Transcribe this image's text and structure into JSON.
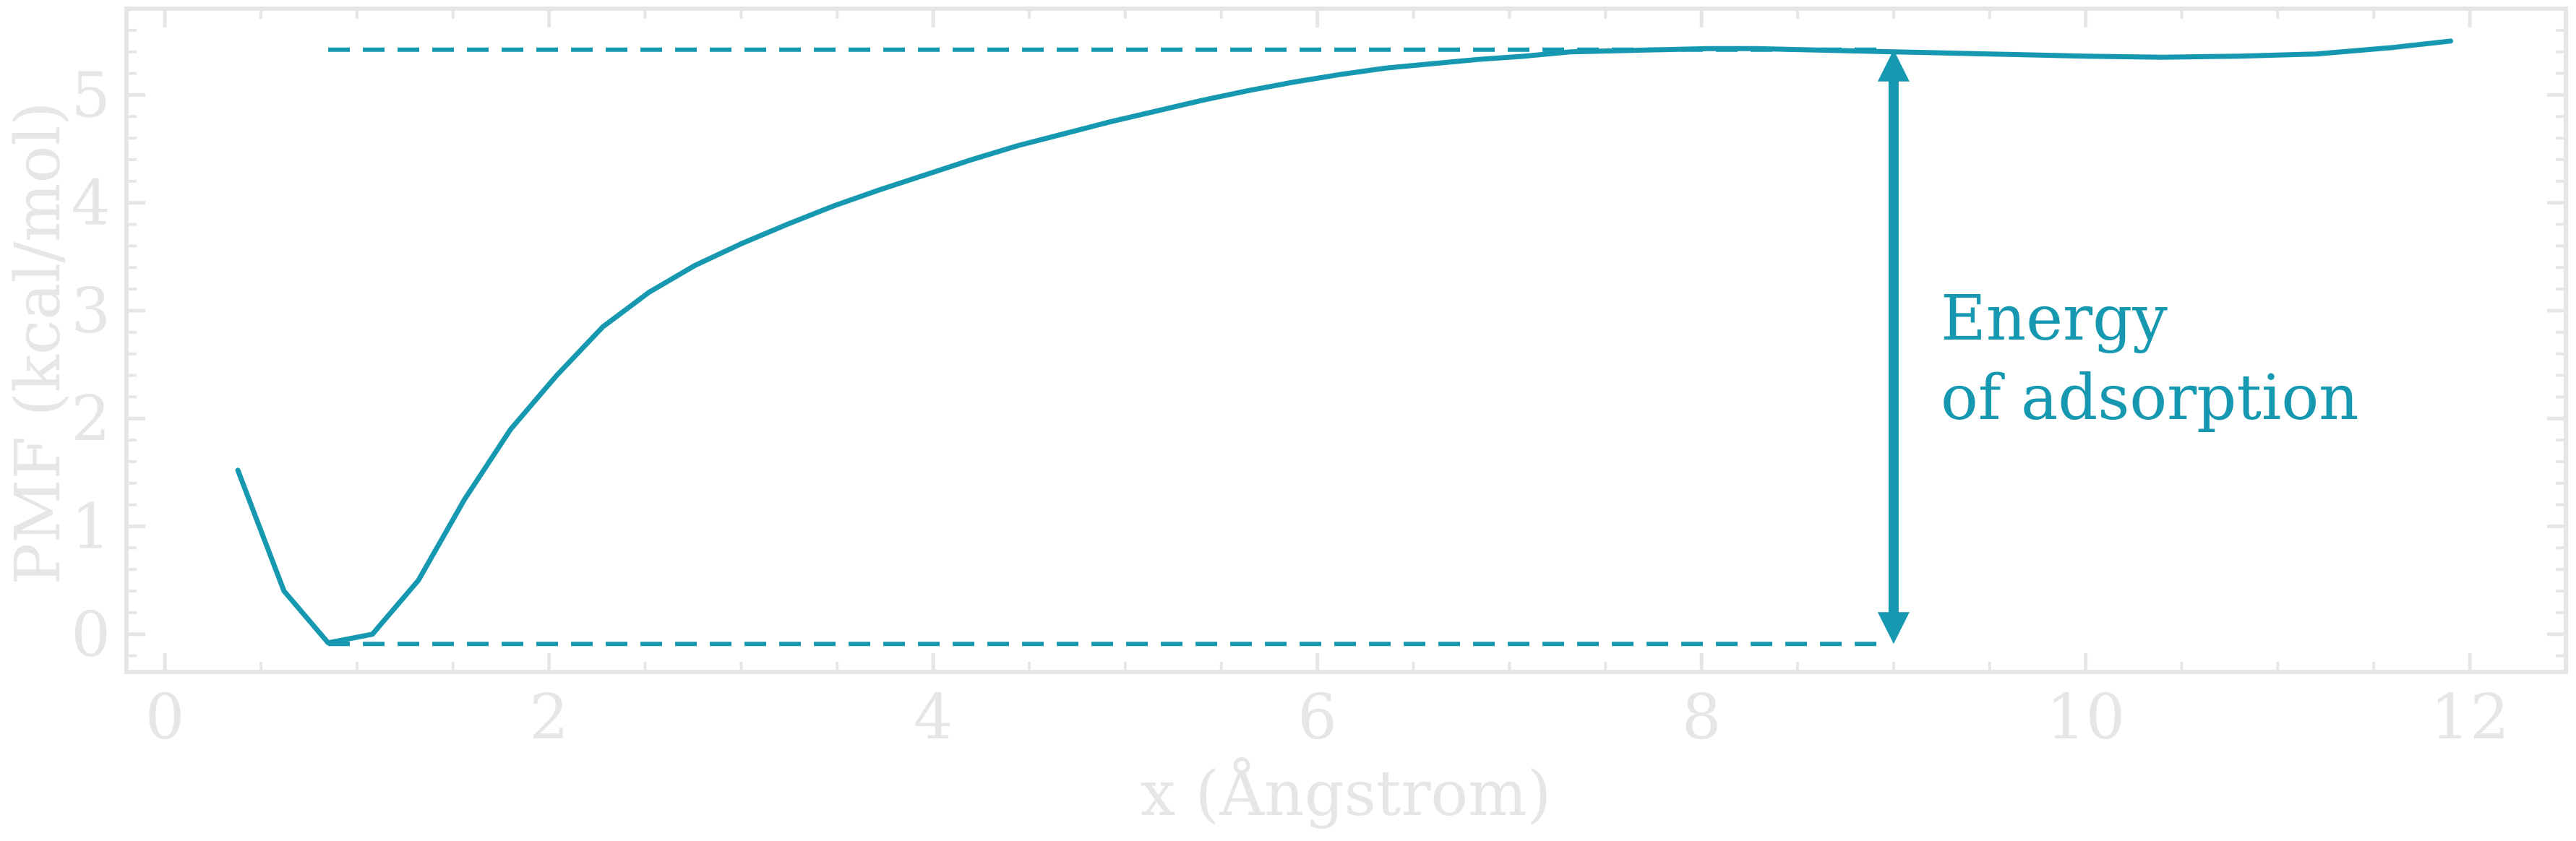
{
  "chart_data": {
    "type": "line",
    "title": "",
    "xlabel": "x (Ångstrom)",
    "ylabel": "PMF (kcal/mol)",
    "xlim": [
      -0.2,
      12.5
    ],
    "ylim": [
      -0.35,
      5.8
    ],
    "xticks": [
      0,
      2,
      4,
      6,
      8,
      10,
      12
    ],
    "yticks": [
      0,
      1,
      2,
      3,
      4,
      5
    ],
    "xtick_labels": [
      "0",
      "2",
      "4",
      "6",
      "8",
      "10",
      "12"
    ],
    "ytick_labels": [
      "0",
      "1",
      "2",
      "3",
      "4",
      "5"
    ],
    "grid": false,
    "series": [
      {
        "color": "#1699b0",
        "x": [
          0.38,
          0.62,
          0.85,
          1.08,
          1.32,
          1.56,
          1.8,
          2.04,
          2.28,
          2.52,
          2.76,
          3.0,
          3.24,
          3.48,
          3.72,
          3.96,
          4.2,
          4.44,
          4.68,
          4.92,
          5.16,
          5.4,
          5.64,
          5.88,
          6.12,
          6.36,
          6.6,
          6.84,
          7.08,
          7.32,
          7.56,
          7.8,
          8.04,
          8.28,
          8.52,
          8.76,
          9.0,
          9.5,
          10.0,
          10.4,
          10.8,
          11.2,
          11.6,
          11.9
        ],
        "y": [
          1.52,
          0.4,
          -0.08,
          0.0,
          0.5,
          1.25,
          1.9,
          2.4,
          2.85,
          3.17,
          3.42,
          3.62,
          3.8,
          3.97,
          4.12,
          4.26,
          4.4,
          4.53,
          4.64,
          4.75,
          4.85,
          4.95,
          5.04,
          5.12,
          5.19,
          5.25,
          5.29,
          5.33,
          5.36,
          5.4,
          5.41,
          5.42,
          5.43,
          5.43,
          5.42,
          5.41,
          5.4,
          5.38,
          5.36,
          5.35,
          5.36,
          5.38,
          5.44,
          5.5
        ]
      }
    ],
    "reference_lines": [
      {
        "y": 5.42,
        "x_range": [
          0.85,
          8.95
        ],
        "style": "dashed",
        "color": "#1699b0"
      },
      {
        "y": -0.09,
        "x_range": [
          0.85,
          8.95
        ],
        "style": "dashed",
        "color": "#1699b0"
      }
    ],
    "annotation": {
      "arrow": {
        "x": 9.0,
        "y_from": 5.42,
        "y_to": -0.09,
        "style": "double-headed"
      },
      "text_lines": [
        "Energy",
        "of adsorption"
      ],
      "color": "#1699b0"
    }
  }
}
